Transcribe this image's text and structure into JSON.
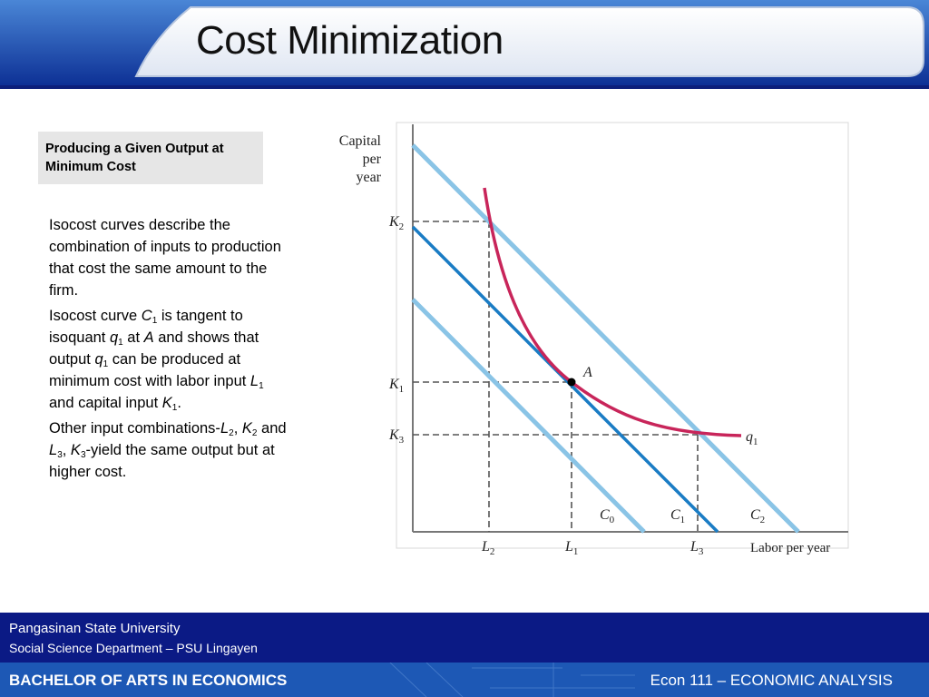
{
  "header": {
    "title": "Cost Minimization"
  },
  "subtitle": {
    "line1": "Producing a Given Output at",
    "line2": "Minimum Cost"
  },
  "body": {
    "p1": "Isocost curves describe the combination of inputs to production that cost the same amount to the firm.",
    "p2": {
      "a": "Isocost curve ",
      "c": "C",
      "c_sub": "1",
      "b": " is tangent to isoquant ",
      "q": "q",
      "q_sub": "1",
      "at": " at ",
      "A": "A",
      "d": " and shows that output ",
      "q2": "q",
      "q2_sub": "1",
      "e": " can be produced at minimum cost with labor input ",
      "L": "L",
      "L_sub": "1",
      "f": " and capital input ",
      "K": "K",
      "K_sub": "1",
      "g": "."
    },
    "p3": {
      "a": "Other input combinations-",
      "L2": "L",
      "L2_sub": "2",
      "comma1": ",",
      "K2": "K",
      "K2_sub": "2",
      "and": " and ",
      "L3": "L",
      "L3_sub": "3",
      "comma2": ", ",
      "K3": "K",
      "K3_sub": "3",
      "b": "-yield the same output but at higher cost."
    }
  },
  "graph": {
    "ylabel_1": "Capital",
    "ylabel_2": "per",
    "ylabel_3": "year",
    "xlabel": "Labor per year",
    "k2": "K",
    "k2_sub": "2",
    "k1": "K",
    "k1_sub": "1",
    "k3": "K",
    "k3_sub": "3",
    "l2": "L",
    "l2_sub": "2",
    "l1": "L",
    "l1_sub": "1",
    "l3": "L",
    "l3_sub": "3",
    "c0": "C",
    "c0_sub": "0",
    "c1": "C",
    "c1_sub": "1",
    "c2": "C",
    "c2_sub": "2",
    "q1": "q",
    "q1_sub": "1",
    "point_a": "A",
    "colors": {
      "isocost_light": "#8ac4e6",
      "isocost_main": "#1a7cc4",
      "isoquant": "#c8255a"
    }
  },
  "footer": {
    "line1": "Pangasinan State University",
    "line2": "Social Science  Department – PSU Lingayen",
    "program": "BACHELOR OF ARTS IN ECONOMICS",
    "course": "Econ 111 – ECONOMIC ANALYSIS"
  }
}
